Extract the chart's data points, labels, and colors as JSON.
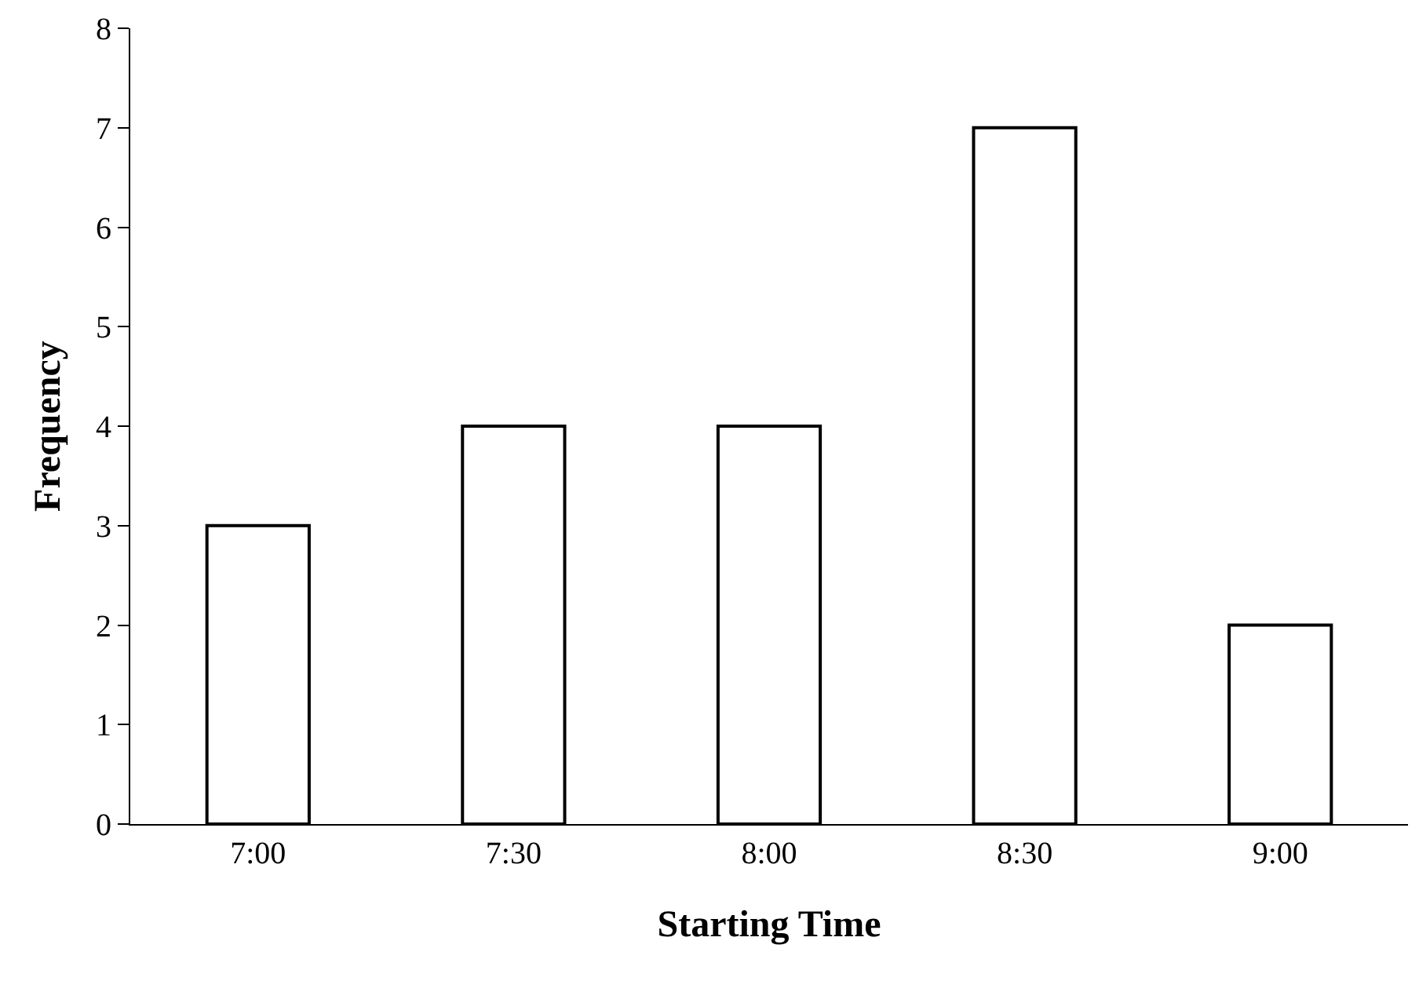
{
  "chart_data": {
    "type": "bar",
    "xlabel": "Starting Time",
    "ylabel": "Frequency",
    "categories": [
      "7:00",
      "7:30",
      "8:00",
      "8:30",
      "9:00"
    ],
    "values": [
      3,
      4,
      4,
      7,
      2
    ],
    "color": "#ffffff",
    "ylim": [
      0,
      8
    ],
    "yticks": [
      0,
      1,
      2,
      3,
      4,
      5,
      6,
      7,
      8
    ],
    "grid": false,
    "legend": false
  }
}
